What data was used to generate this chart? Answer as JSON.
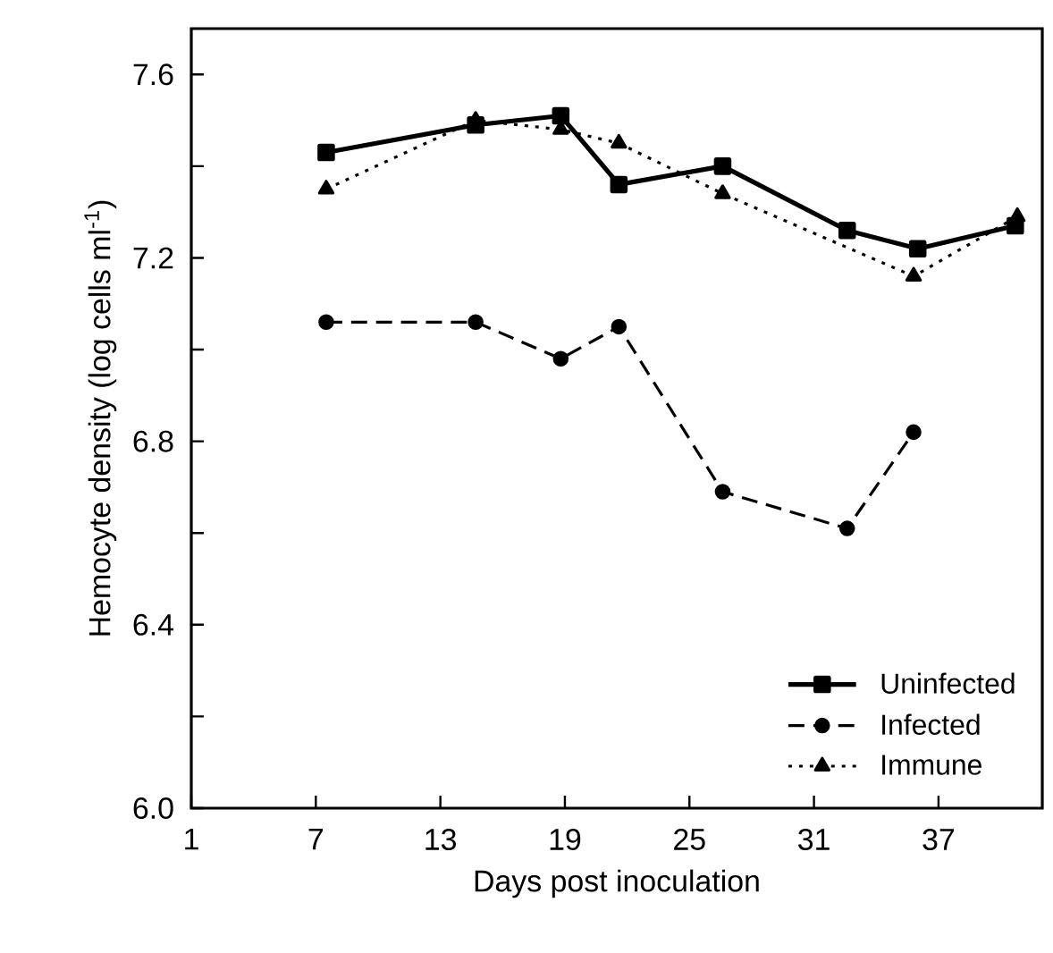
{
  "chart_data": {
    "type": "line",
    "xlabel": "Days post inoculation",
    "ylabel": "Hemocyte density (log cells ml$^{-1}$)",
    "xlim": [
      1,
      42
    ],
    "ylim": [
      6.0,
      7.7
    ],
    "xticks": [
      1,
      7,
      13,
      19,
      25,
      31,
      37
    ],
    "yticks": [
      {
        "value": 6.0,
        "label": "6.0"
      },
      {
        "value": 6.2,
        "label": null
      },
      6.4,
      {
        "value": 6.6,
        "label": null
      },
      6.8,
      {
        "value": 7.0,
        "label": null
      },
      7.2,
      {
        "value": 7.4,
        "label": null
      },
      7.6
    ],
    "legend": "bottom right",
    "grid": false,
    "series": [
      {
        "name": "Uninfected",
        "color": "#000000",
        "marker": "square",
        "line_style": "solid",
        "x": [
          7.5,
          14.7,
          18.8,
          21.6,
          26.6,
          32.6,
          36.0,
          40.7
        ],
        "values": [
          7.43,
          7.49,
          7.51,
          7.36,
          7.4,
          7.26,
          7.22,
          7.27
        ]
      },
      {
        "name": "Infected",
        "color": "#000000",
        "marker": "circle",
        "line_style": "dashed",
        "x": [
          7.5,
          14.7,
          18.8,
          21.6,
          26.6,
          32.6,
          35.8
        ],
        "values": [
          7.06,
          7.06,
          6.98,
          7.05,
          6.69,
          6.61,
          6.82
        ]
      },
      {
        "name": "Immune",
        "color": "#000000",
        "marker": "triangle",
        "line_style": "dotted",
        "x": [
          7.5,
          14.7,
          18.8,
          21.6,
          26.6,
          35.8,
          40.8
        ],
        "values": [
          7.35,
          7.5,
          7.48,
          7.45,
          7.34,
          7.16,
          7.29
        ]
      }
    ]
  }
}
